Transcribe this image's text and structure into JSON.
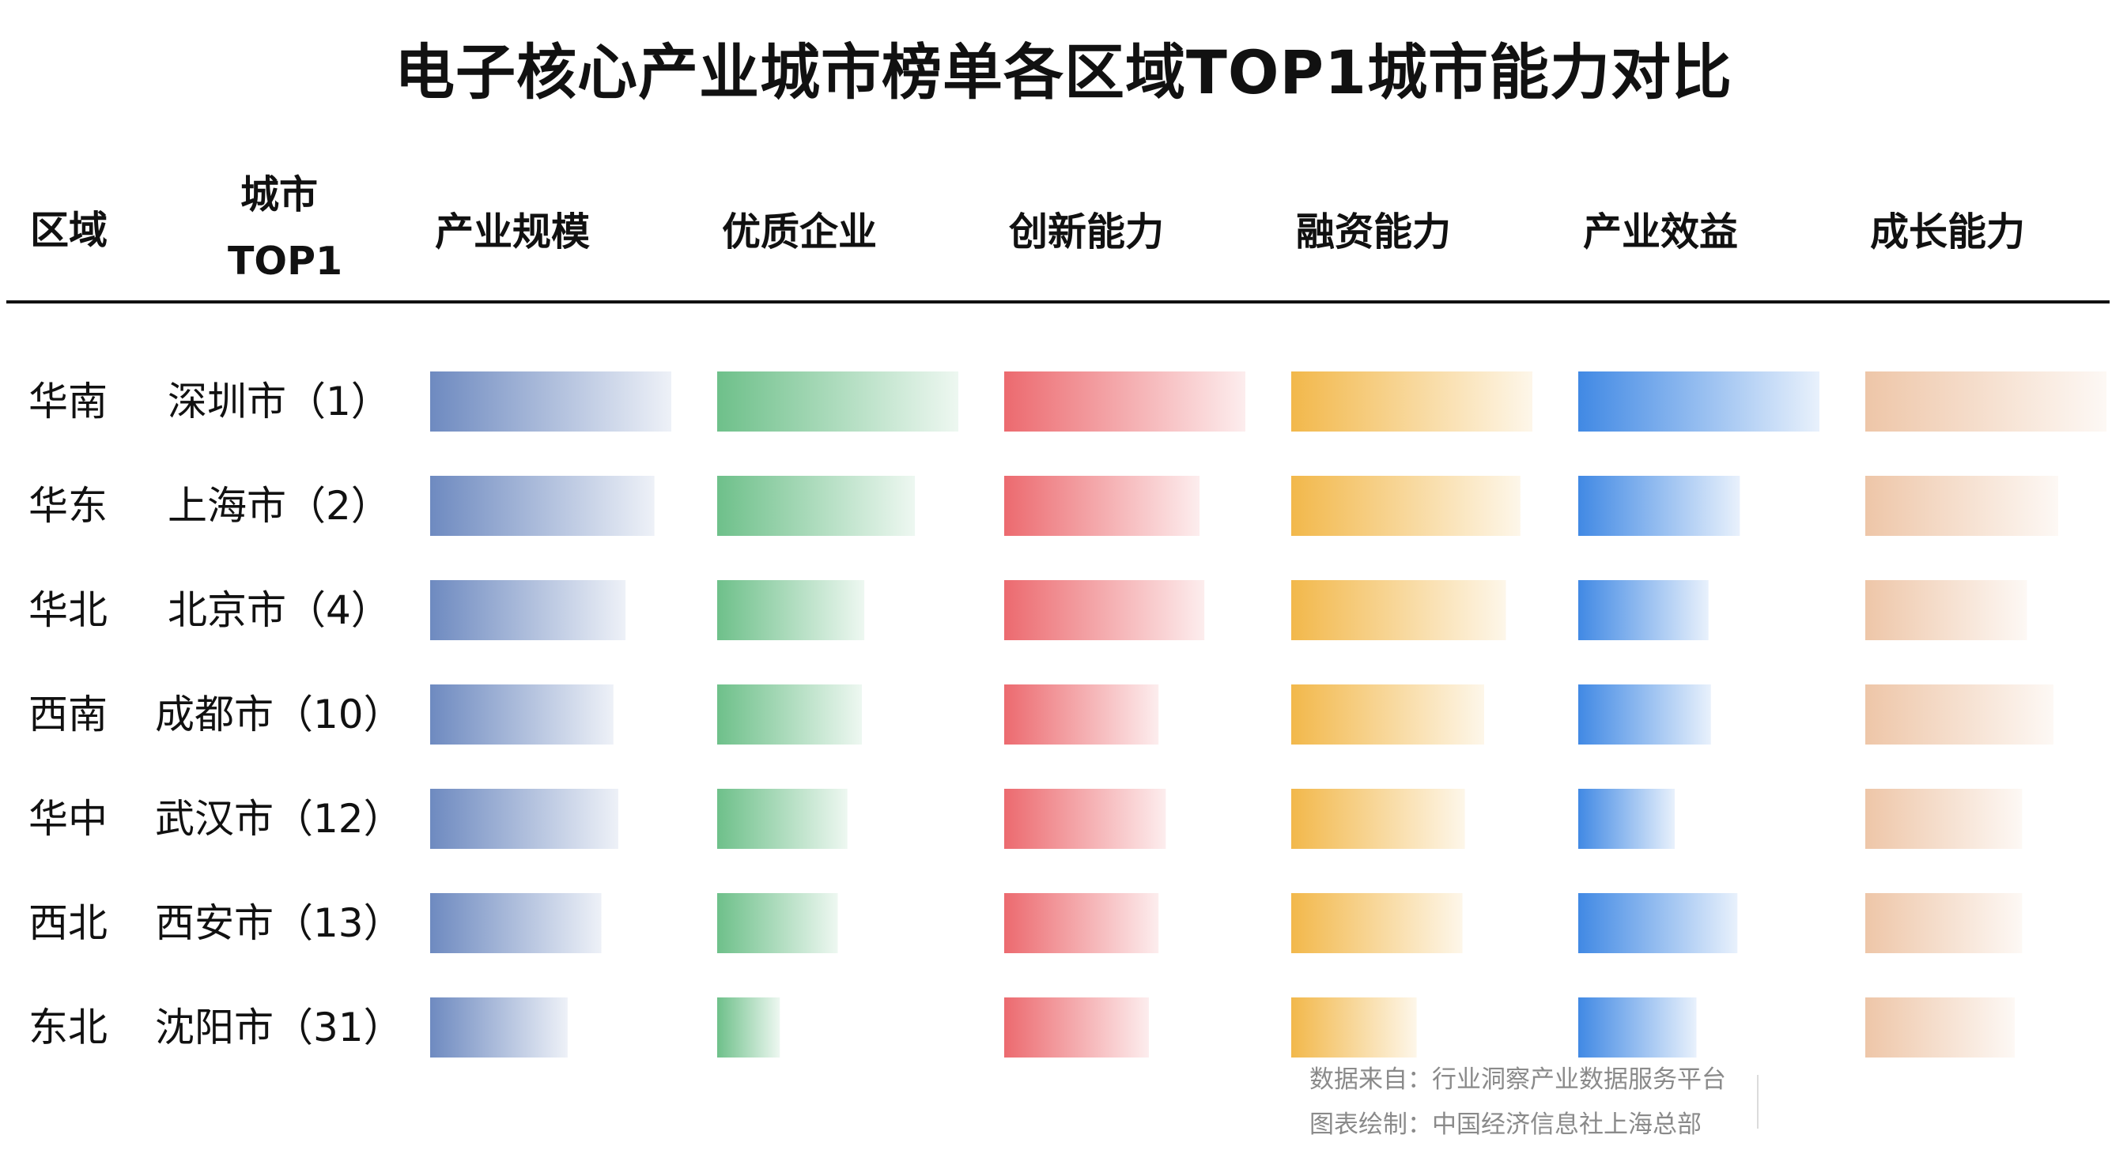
{
  "title": "电子核心产业城市榜单各区域TOP1城市能力对比",
  "headers": {
    "region": "区域",
    "city_line1": "城市",
    "city_line2": "TOP1"
  },
  "footer": {
    "source": "数据来自：行业洞察产业数据服务平台",
    "credit": "图表绘制：中国经济信息社上海总部"
  },
  "rows": [
    {
      "region": "华南",
      "city": "深圳市（1）"
    },
    {
      "region": "华东",
      "city": "上海市（2）"
    },
    {
      "region": "华北",
      "city": "北京市（4）"
    },
    {
      "region": "西南",
      "city": "成都市（10）"
    },
    {
      "region": "华中",
      "city": "武汉市（12）"
    },
    {
      "region": "西北",
      "city": "西安市（13）"
    },
    {
      "region": "东北",
      "city": "沈阳市（31）"
    }
  ],
  "chart_data": {
    "type": "bar",
    "orientation": "horizontal",
    "title": "电子核心产业城市榜单各区域TOP1城市能力对比",
    "categories": [
      "深圳市（1）",
      "上海市（2）",
      "北京市（4）",
      "成都市（10）",
      "武汉市（12）",
      "西安市（13）",
      "沈阳市（31）"
    ],
    "xlim": [
      0,
      100
    ],
    "grid": false,
    "legend": "none",
    "series": [
      {
        "name": "产业规模",
        "color": "#6e8ac0",
        "values": [
          100,
          93,
          81,
          76,
          78,
          71,
          57
        ]
      },
      {
        "name": "优质企业",
        "color": "#6ec08a",
        "values": [
          100,
          82,
          61,
          60,
          54,
          50,
          26
        ]
      },
      {
        "name": "创新能力",
        "color": "#ec6a6f",
        "values": [
          100,
          81,
          83,
          64,
          67,
          64,
          60
        ]
      },
      {
        "name": "融资能力",
        "color": "#f2b84b",
        "values": [
          100,
          95,
          89,
          80,
          72,
          71,
          52
        ]
      },
      {
        "name": "产业效益",
        "color": "#4189e4",
        "values": [
          100,
          67,
          54,
          55,
          40,
          66,
          49
        ]
      },
      {
        "name": "成长能力",
        "color": "#eec6a8",
        "values": [
          100,
          80,
          67,
          78,
          65,
          65,
          62
        ]
      }
    ]
  }
}
